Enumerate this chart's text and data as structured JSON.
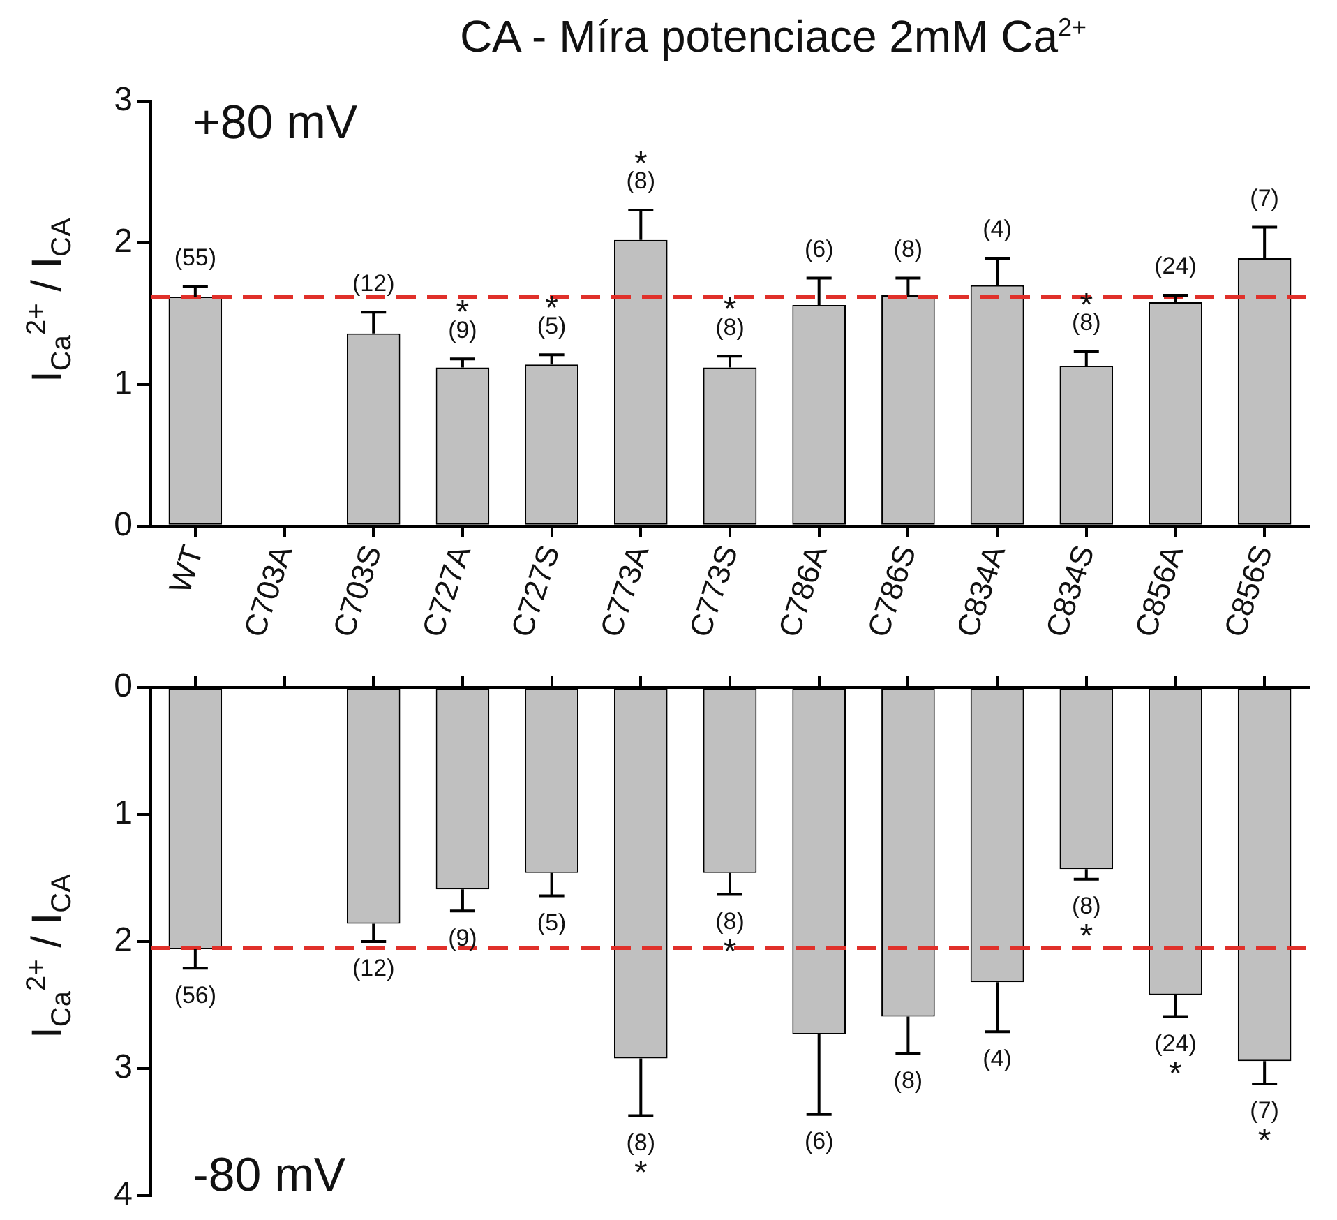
{
  "chart_data": [
    {
      "type": "bar",
      "title": "CA - Míra potenciace 2mM Ca$^{2+}$",
      "ylabel": "I$_{Ca}$$^{2+}$ / I$_{CA}$",
      "categories": [
        "WT",
        "C703A",
        "C703S",
        "C727A",
        "C727S",
        "C773A",
        "C773S",
        "C786A",
        "C786S",
        "C834A",
        "C834S",
        "C856A",
        "C856S"
      ],
      "values": [
        1.62,
        null,
        1.36,
        1.12,
        1.14,
        2.02,
        1.12,
        1.56,
        1.63,
        1.7,
        1.13,
        1.58,
        1.89
      ],
      "errors": [
        0.07,
        null,
        0.15,
        0.06,
        0.07,
        0.21,
        0.08,
        0.19,
        0.12,
        0.19,
        0.1,
        0.05,
        0.22
      ],
      "color": "#c0c0c0",
      "ylim": [
        0,
        3
      ],
      "yticks": [
        0,
        1,
        2,
        3
      ],
      "grid": false,
      "legend": false,
      "ref_lines": [
        {
          "axis": "y",
          "value": 1.62,
          "color": "#e0302a",
          "line_style": "dashed"
        }
      ],
      "annotations": [
        "+80 mV",
        {
          "text": "(55)",
          "x": "WT",
          "y": 1.69
        },
        {
          "text": "(12)",
          "x": "C703S",
          "y": 1.51
        },
        {
          "text": "(9)",
          "x": "C727A",
          "y": 1.18
        },
        {
          "text": "*",
          "x": "C727A",
          "y": 1.18
        },
        {
          "text": "(5)",
          "x": "C727S",
          "y": 1.21
        },
        {
          "text": "*",
          "x": "C727S",
          "y": 1.21
        },
        {
          "text": "(8)",
          "x": "C773A",
          "y": 2.23
        },
        {
          "text": "*",
          "x": "C773A",
          "y": 2.23
        },
        {
          "text": "(8)",
          "x": "C773S",
          "y": 1.2
        },
        {
          "text": "*",
          "x": "C773S",
          "y": 1.2
        },
        {
          "text": "(6)",
          "x": "C786A",
          "y": 1.75
        },
        {
          "text": "(8)",
          "x": "C786S",
          "y": 1.75
        },
        {
          "text": "(4)",
          "x": "C834A",
          "y": 1.89
        },
        {
          "text": "(8)",
          "x": "C834S",
          "y": 1.23
        },
        {
          "text": "*",
          "x": "C834S",
          "y": 1.23
        },
        {
          "text": "(24)",
          "x": "C856A",
          "y": 1.63
        },
        {
          "text": "(7)",
          "x": "C856S",
          "y": 2.11
        }
      ]
    },
    {
      "type": "bar",
      "ylabel": "I$_{Ca}$$^{2+}$ / I$_{CA}$",
      "categories": [
        "WT",
        "C703A",
        "C703S",
        "C727A",
        "C727S",
        "C773A",
        "C773S",
        "C786A",
        "C786S",
        "C834A",
        "C834S",
        "C856A",
        "C856S"
      ],
      "values": [
        2.06,
        null,
        1.86,
        1.59,
        1.46,
        2.92,
        1.46,
        2.73,
        2.59,
        2.32,
        1.43,
        2.42,
        2.94
      ],
      "errors": [
        0.15,
        null,
        0.14,
        0.17,
        0.18,
        0.45,
        0.17,
        0.63,
        0.29,
        0.39,
        0.08,
        0.17,
        0.18
      ],
      "color": "#c0c0c0",
      "ylim": [
        4,
        0
      ],
      "yticks": [
        0,
        1,
        2,
        3,
        4
      ],
      "grid": false,
      "legend": false,
      "tick_labels": "y",
      "ref_lines": [
        {
          "axis": "y",
          "value": 2.05,
          "color": "#e0302a",
          "line_style": "dashed"
        }
      ],
      "annotations": [
        "-80 mV",
        {
          "text": "(56)",
          "x": "WT",
          "y": 2.21
        },
        {
          "text": "(12)",
          "x": "C703S",
          "y": 2.0
        },
        {
          "text": "(9)",
          "x": "C727A",
          "y": 1.76
        },
        {
          "text": "(5)",
          "x": "C727S",
          "y": 1.64
        },
        {
          "text": "(8)",
          "x": "C773A",
          "y": 3.37
        },
        {
          "text": "*",
          "x": "C773A",
          "y": 3.37
        },
        {
          "text": "(8)",
          "x": "C773S",
          "y": 1.63
        },
        {
          "text": "*",
          "x": "C773S",
          "y": 1.63
        },
        {
          "text": "(6)",
          "x": "C786A",
          "y": 3.36
        },
        {
          "text": "(8)",
          "x": "C786S",
          "y": 2.88
        },
        {
          "text": "(4)",
          "x": "C834A",
          "y": 2.71
        },
        {
          "text": "(8)",
          "x": "C834S",
          "y": 1.51
        },
        {
          "text": "*",
          "x": "C834S",
          "y": 1.51
        },
        {
          "text": "(24)",
          "x": "C856A",
          "y": 2.59
        },
        {
          "text": "*",
          "x": "C856A",
          "y": 2.59
        },
        {
          "text": "(7)",
          "x": "C856S",
          "y": 3.12
        },
        {
          "text": "*",
          "x": "C856S",
          "y": 3.12
        }
      ]
    }
  ]
}
